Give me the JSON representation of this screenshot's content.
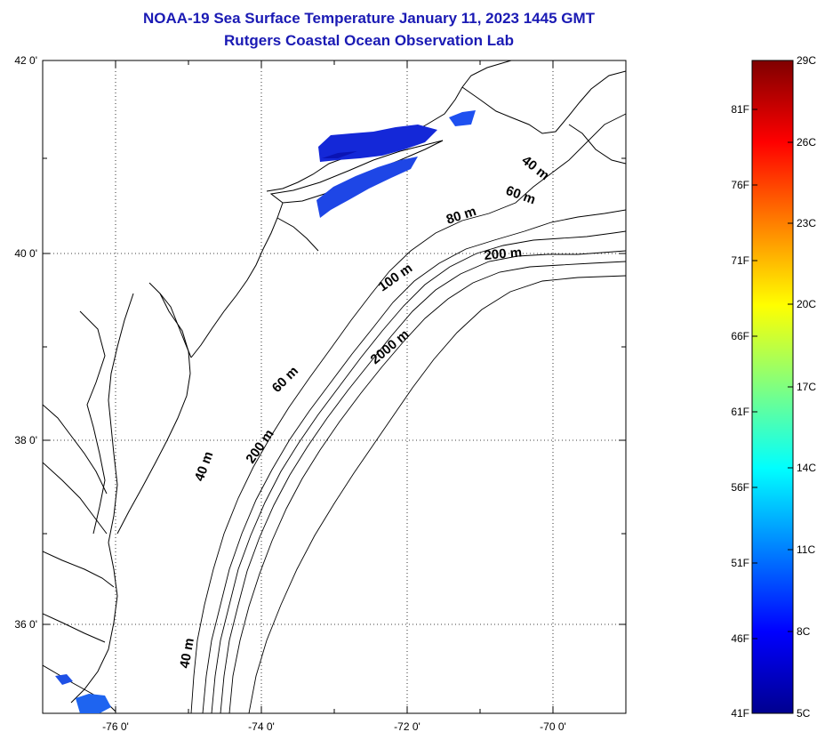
{
  "title": {
    "line1": "NOAA-19 Sea Surface Temperature January 11, 2023 1445 GMT",
    "line2": "Rutgers Coastal Ocean Observation Lab"
  },
  "map": {
    "lat_labels": [
      "42 0'",
      "40 0'",
      "38 0'",
      "36 0'"
    ],
    "lon_labels": [
      "-76 0'",
      "-74 0'",
      "-72 0'",
      "-70 0'"
    ],
    "lat_range": [
      35.0,
      42.0
    ],
    "lon_range": [
      -77.0,
      -69.0
    ],
    "grid": "dotted",
    "depth_contour_labels": [
      "40 m",
      "60 m",
      "80 m",
      "200 m",
      "100 m",
      "2000 m",
      "60 m",
      "200 m",
      "40 m",
      "40 m"
    ]
  },
  "colorbar": {
    "f_labels": [
      "81F",
      "76F",
      "71F",
      "66F",
      "61F",
      "56F",
      "51F",
      "46F",
      "41F"
    ],
    "c_labels": [
      "29C",
      "26C",
      "23C",
      "20C",
      "17C",
      "14C",
      "11C",
      "8C",
      "5C"
    ],
    "colors": [
      "#7f0000",
      "#ff0000",
      "#ff8000",
      "#ffff00",
      "#80ff80",
      "#00ffff",
      "#0080ff",
      "#0000ff",
      "#00008f"
    ]
  }
}
